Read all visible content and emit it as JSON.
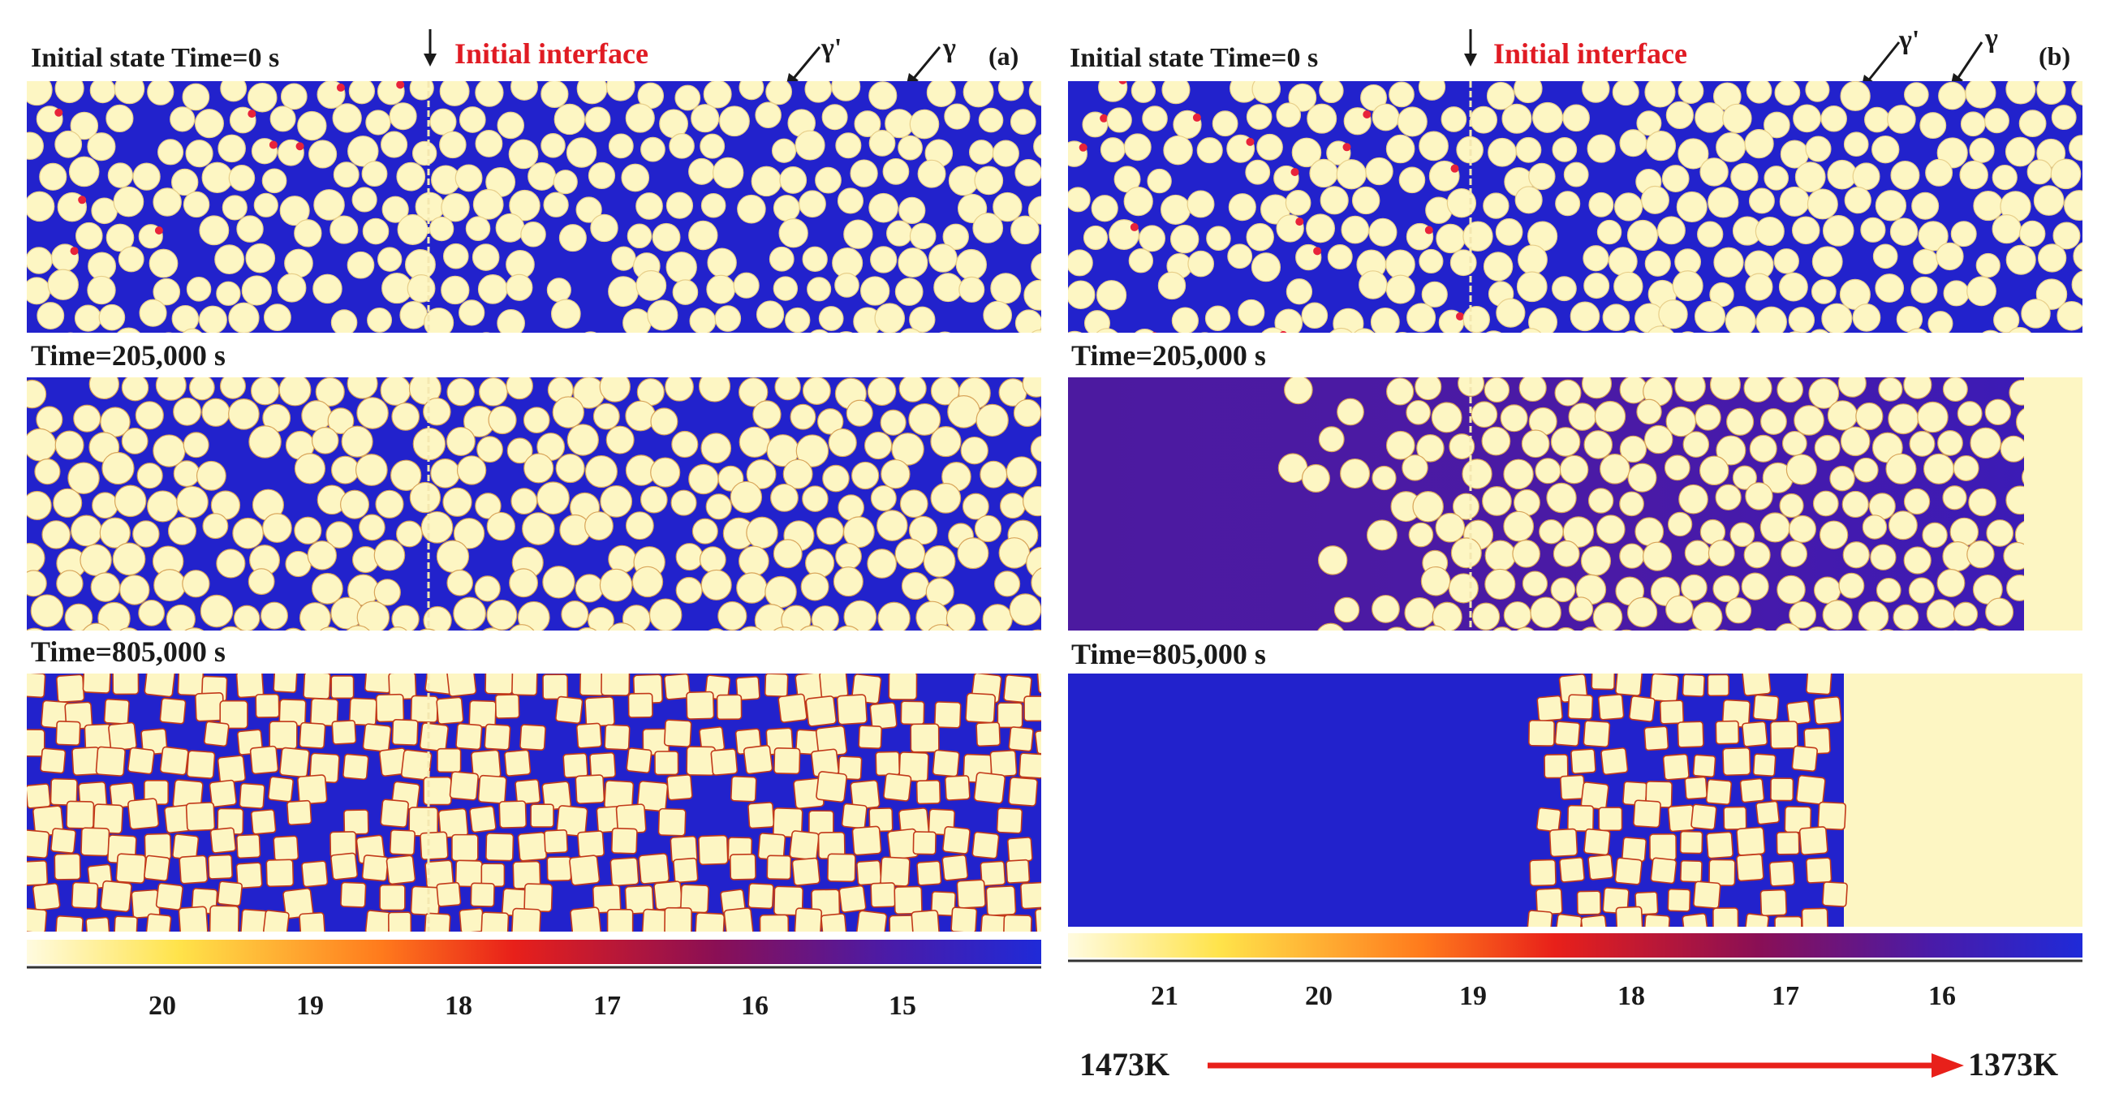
{
  "colors": {
    "matrix_blue": "#2222cc",
    "particle_cream": "#fdf6c3",
    "particle_edge": "#c23a1a",
    "dot_red": "#e8233a",
    "interface_red": "#e01b23",
    "purple_matrix": "#4b1ba3",
    "purple_deep": "#3a16b8",
    "arrow_red": "#e8201a",
    "text_dark": "#1a1a1a"
  },
  "panel_a": {
    "tag": "(a)",
    "row0_label": "Initial state Time=0 s",
    "row1_label": "Time=205,000 s",
    "row2_label": "Time=805,000 s",
    "interface_label": "Initial interface",
    "gamma_prime_label": "γ'",
    "gamma_label": "γ",
    "colorbar_ticks": [
      "20",
      "19",
      "18",
      "17",
      "16",
      "15"
    ]
  },
  "panel_b": {
    "tag": "(b)",
    "row0_label": "Initial state Time=0 s",
    "row1_label": "Time=205,000 s",
    "row2_label": "Time=805,000 s",
    "interface_label": "Initial interface",
    "gamma_prime_label": "γ'",
    "gamma_label": "γ",
    "colorbar_ticks": [
      "21",
      "20",
      "19",
      "18",
      "17",
      "16"
    ],
    "temp_left": "1473K",
    "temp_right": "1373K"
  }
}
